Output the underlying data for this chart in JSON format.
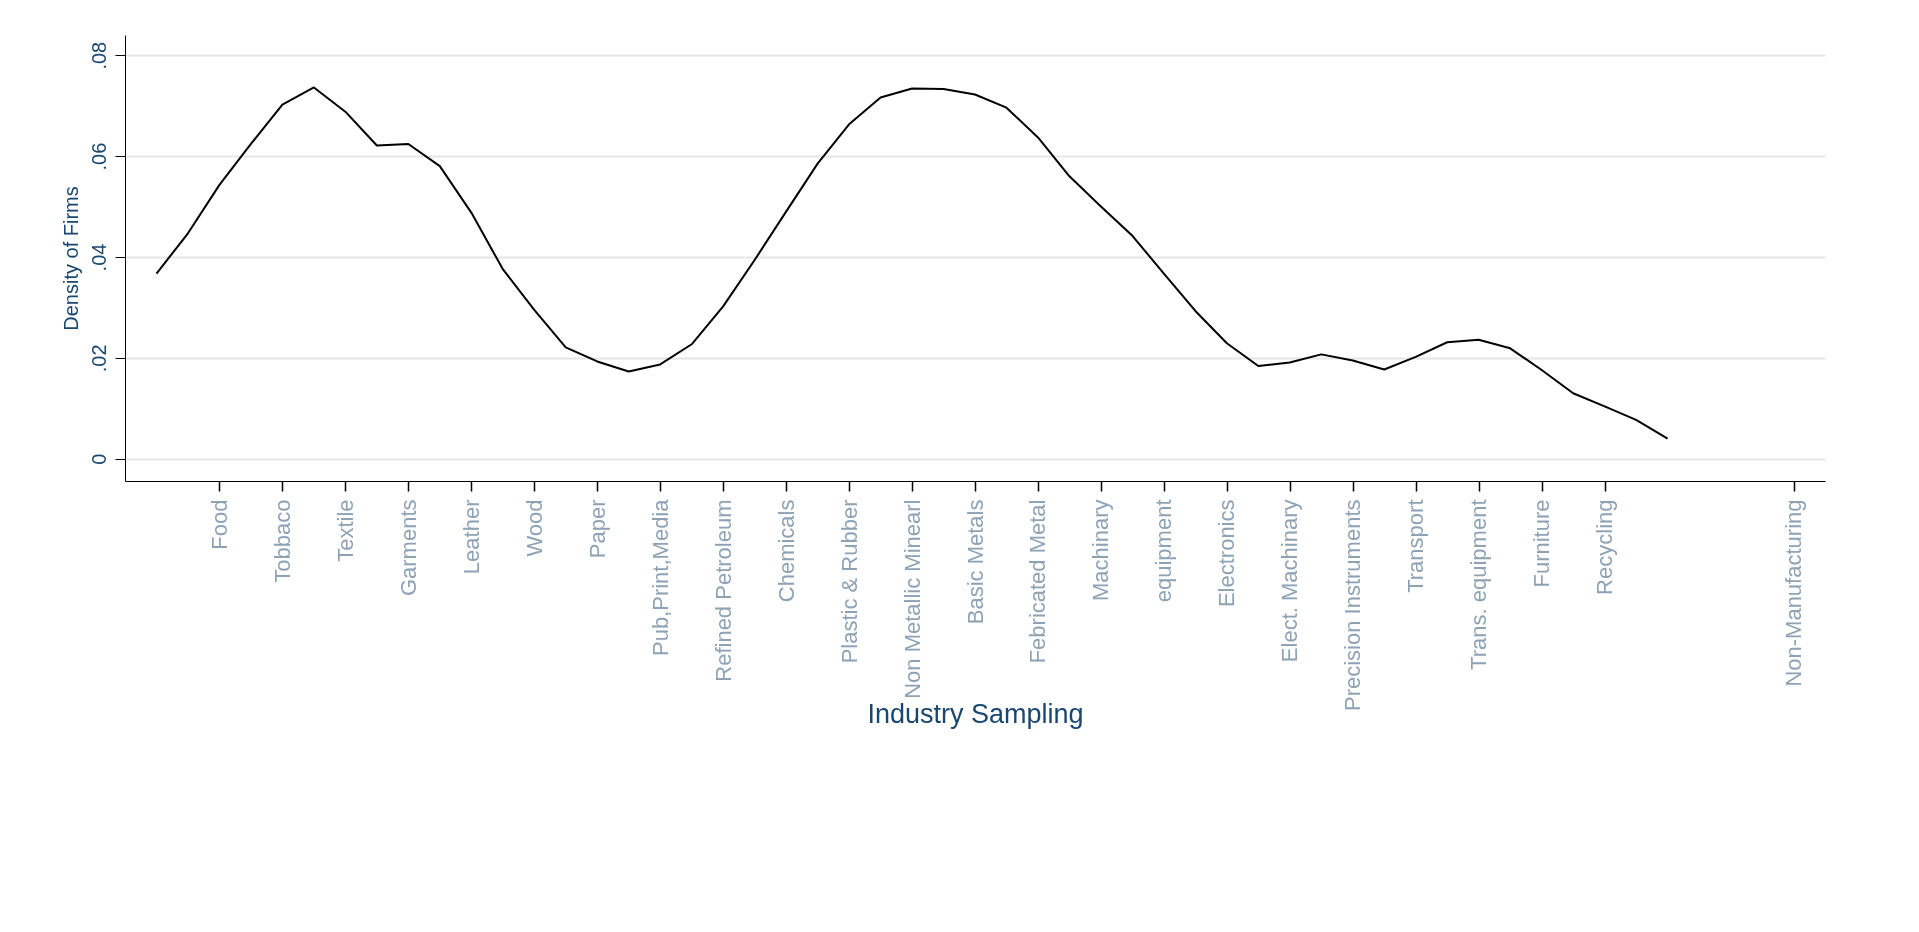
{
  "chart_data": {
    "type": "line",
    "xlabel": "Industry Sampling",
    "ylabel": "Density of Firms",
    "categories": [
      null,
      null,
      "Food",
      null,
      "Tobbaco",
      null,
      "Textile",
      null,
      "Garments",
      null,
      "Leather",
      null,
      "Wood",
      null,
      "Paper",
      null,
      "Pub,Print,Media",
      null,
      "Refined Petroleum",
      null,
      "Chemicals",
      null,
      "Plastic & Rubber",
      null,
      "Non Metallic Minearl",
      null,
      "Basic Metals",
      null,
      "Febricated Metal",
      null,
      "Machinary",
      null,
      "equipment",
      null,
      "Electronics",
      null,
      "Elect. Machinary",
      null,
      "Precision Instruments",
      null,
      "Transport",
      null,
      "Trans. equipment",
      null,
      "Furniture",
      null,
      "Recycling",
      null,
      null,
      null,
      null,
      null,
      "Non-Manufacturing"
    ],
    "ylim": [
      -0.0044,
      0.084
    ],
    "yticks": [
      0,
      {
        "value": 0.02,
        "label": ".02"
      },
      {
        "value": 0.04,
        "label": ".04"
      },
      {
        "value": 0.06,
        "label": ".06"
      },
      {
        "value": 0.08,
        "label": ".08"
      }
    ],
    "grid": "y",
    "marker": "none",
    "line_style": "solid",
    "series": [
      {
        "color": "#000000",
        "values": [
          0.0367,
          0.0447,
          0.0543,
          0.0624,
          0.0702,
          0.0736,
          0.0688,
          0.0621,
          0.0624,
          0.058,
          0.0488,
          0.0376,
          0.0295,
          0.0221,
          0.0193,
          0.0173,
          0.0187,
          0.0227,
          0.0302,
          0.0394,
          0.049,
          0.0585,
          0.0663,
          0.0716,
          0.0734,
          0.0733,
          0.0722,
          0.0696,
          0.0637,
          0.056,
          0.05,
          0.0442,
          0.0367,
          0.0293,
          0.0229,
          0.0184,
          0.0191,
          0.0207,
          0.0195,
          0.0177,
          0.0202,
          0.0231,
          0.0236,
          0.0219,
          0.0176,
          0.013,
          0.0104,
          0.0077,
          0.004,
          null,
          null,
          null,
          null
        ]
      }
    ]
  }
}
